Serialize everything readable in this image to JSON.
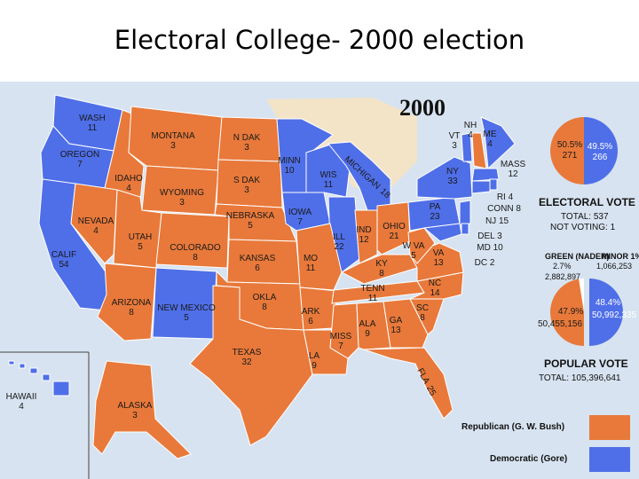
{
  "slide": {
    "title": "Electoral College- 2000 election"
  },
  "map": {
    "year": "2000",
    "colors": {
      "republican": "#e8793a",
      "democratic": "#4f6fe8",
      "background": "#d7e3f0",
      "water": "#d7e3f0",
      "other_land": "#f3e4c8",
      "border": "#ffffff"
    },
    "states": [
      {
        "id": "wa",
        "name": "WASH",
        "votes": "11",
        "party": "democratic"
      },
      {
        "id": "or",
        "name": "OREGON",
        "votes": "7",
        "party": "democratic"
      },
      {
        "id": "ca",
        "name": "CALIF",
        "votes": "54",
        "party": "democratic"
      },
      {
        "id": "id",
        "name": "IDAHO",
        "votes": "4",
        "party": "republican"
      },
      {
        "id": "nv",
        "name": "NEVADA",
        "votes": "4",
        "party": "republican"
      },
      {
        "id": "mt",
        "name": "MONTANA",
        "votes": "3",
        "party": "republican"
      },
      {
        "id": "wy",
        "name": "WYOMING",
        "votes": "3",
        "party": "republican"
      },
      {
        "id": "ut",
        "name": "UTAH",
        "votes": "5",
        "party": "republican"
      },
      {
        "id": "az",
        "name": "ARIZONA",
        "votes": "8",
        "party": "republican"
      },
      {
        "id": "co",
        "name": "COLORADO",
        "votes": "8",
        "party": "republican"
      },
      {
        "id": "nm",
        "name": "NEW MEXICO",
        "votes": "5",
        "party": "democratic"
      },
      {
        "id": "nd",
        "name": "N DAK",
        "votes": "3",
        "party": "republican"
      },
      {
        "id": "sd",
        "name": "S DAK",
        "votes": "3",
        "party": "republican"
      },
      {
        "id": "ne",
        "name": "NEBRASKA",
        "votes": "5",
        "party": "republican"
      },
      {
        "id": "ks",
        "name": "KANSAS",
        "votes": "6",
        "party": "republican"
      },
      {
        "id": "ok",
        "name": "OKLA",
        "votes": "8",
        "party": "republican"
      },
      {
        "id": "tx",
        "name": "TEXAS",
        "votes": "32",
        "party": "republican"
      },
      {
        "id": "mn",
        "name": "MINN",
        "votes": "10",
        "party": "democratic"
      },
      {
        "id": "ia",
        "name": "IOWA",
        "votes": "7",
        "party": "democratic"
      },
      {
        "id": "mo",
        "name": "MO",
        "votes": "11",
        "party": "republican"
      },
      {
        "id": "ar",
        "name": "ARK",
        "votes": "6",
        "party": "republican"
      },
      {
        "id": "la",
        "name": "LA",
        "votes": "9",
        "party": "republican"
      },
      {
        "id": "wi",
        "name": "WIS",
        "votes": "11",
        "party": "democratic"
      },
      {
        "id": "il",
        "name": "ILL",
        "votes": "22",
        "party": "democratic"
      },
      {
        "id": "mi",
        "name": "MICHIGAN",
        "votes": "18",
        "party": "democratic"
      },
      {
        "id": "in",
        "name": "IND",
        "votes": "12",
        "party": "republican"
      },
      {
        "id": "oh",
        "name": "OHIO",
        "votes": "21",
        "party": "republican"
      },
      {
        "id": "ky",
        "name": "KY",
        "votes": "8",
        "party": "republican"
      },
      {
        "id": "tn",
        "name": "TENN",
        "votes": "11",
        "party": "republican"
      },
      {
        "id": "ms",
        "name": "MISS",
        "votes": "7",
        "party": "republican"
      },
      {
        "id": "al",
        "name": "ALA",
        "votes": "9",
        "party": "republican"
      },
      {
        "id": "ga",
        "name": "GA",
        "votes": "13",
        "party": "republican"
      },
      {
        "id": "fl",
        "name": "FLA",
        "votes": "25",
        "party": "republican"
      },
      {
        "id": "sc",
        "name": "SC",
        "votes": "8",
        "party": "republican"
      },
      {
        "id": "nc",
        "name": "NC",
        "votes": "14",
        "party": "republican"
      },
      {
        "id": "va",
        "name": "VA",
        "votes": "13",
        "party": "republican"
      },
      {
        "id": "wv",
        "name": "W VA",
        "votes": "5",
        "party": "republican"
      },
      {
        "id": "pa",
        "name": "PA",
        "votes": "23",
        "party": "democratic"
      },
      {
        "id": "ny",
        "name": "NY",
        "votes": "33",
        "party": "democratic"
      },
      {
        "id": "vt",
        "name": "VT",
        "votes": "3",
        "party": "democratic"
      },
      {
        "id": "nh",
        "name": "NH",
        "votes": "4",
        "party": "republican"
      },
      {
        "id": "me",
        "name": "ME",
        "votes": "4",
        "party": "democratic"
      },
      {
        "id": "ak",
        "name": "ALASKA",
        "votes": "3",
        "party": "republican"
      },
      {
        "id": "hi",
        "name": "HAWAII",
        "votes": "4",
        "party": "democratic"
      }
    ],
    "small_states": [
      {
        "id": "mass",
        "text": "MASS",
        "votes": "12"
      },
      {
        "id": "ri",
        "text": "RI 4"
      },
      {
        "id": "conn",
        "text": "CONN 8"
      },
      {
        "id": "nj",
        "text": "NJ 15"
      },
      {
        "id": "del",
        "text": "DEL 3"
      },
      {
        "id": "md",
        "text": "MD 10"
      },
      {
        "id": "dc",
        "text": "DC 2"
      }
    ]
  },
  "electoral": {
    "gop_pct": "50.5%",
    "gop_votes": "271",
    "dem_pct": "49.5%",
    "dem_votes": "266",
    "title": "ELECTORAL VOTE",
    "total": "TOTAL:  537",
    "not_voting": "NOT VOTING:  1"
  },
  "popular": {
    "green_label": "GREEN (NADER)",
    "green_pct": "2.7%",
    "green_votes": "2,882,897",
    "minor_label": "MINOR  1%",
    "minor_votes": "1,066,253",
    "gop_pct": "47.9%",
    "gop_votes": "50,455,156",
    "dem_pct": "48.4%",
    "dem_votes": "50,992,335",
    "title": "POPULAR VOTE",
    "total": "TOTAL:  105,396,641"
  },
  "legend": {
    "republican": "Republican (G. W. Bush)",
    "democratic": "Democratic (Gore)"
  }
}
